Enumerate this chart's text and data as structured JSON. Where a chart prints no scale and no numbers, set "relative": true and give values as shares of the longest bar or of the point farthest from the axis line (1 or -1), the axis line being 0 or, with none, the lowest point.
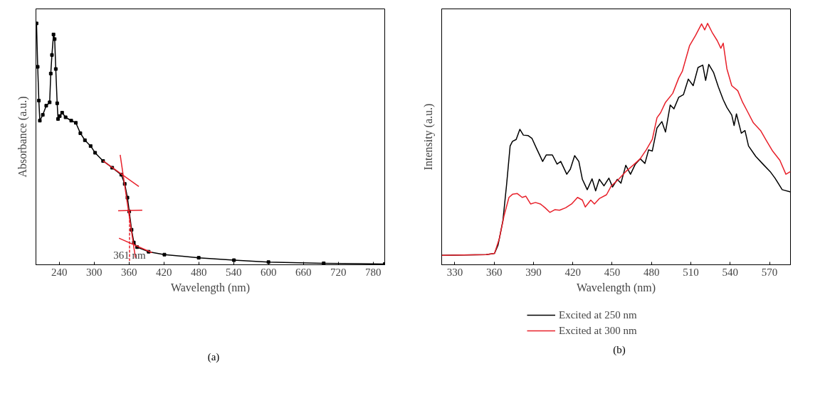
{
  "chart_data": [
    {
      "type": "line",
      "relative": true,
      "xlabel": "Wavelength (nm)",
      "ylabel": "Absorbance (a.u.)",
      "xlim": [
        200,
        800
      ],
      "xticks": [
        240,
        300,
        360,
        420,
        480,
        540,
        600,
        660,
        720,
        780
      ],
      "grid": false,
      "legend": false,
      "marker": "square",
      "line_style": "solid",
      "annotations": [
        "(a)",
        {
          "text": "361 nm",
          "x": 361,
          "y": 0.04
        }
      ],
      "series": [
        {
          "color": "#000000",
          "x": [
            201,
            203,
            205,
            206.7,
            211.8,
            217.7,
            223.6,
            225.5,
            227.5,
            230.2,
            232.2,
            234.1,
            236.5,
            238,
            241,
            245,
            251,
            260.7,
            268.6,
            276.4,
            284.2,
            294,
            301.8,
            315.5,
            331.2,
            346.8,
            352.7,
            357.4,
            360.5,
            364.5,
            368.4,
            374,
            393.8,
            421,
            480,
            540.6,
            600,
            695,
            800
          ],
          "values": [
            1.0,
            0.82,
            0.68,
            0.597,
            0.621,
            0.659,
            0.673,
            0.792,
            0.869,
            0.954,
            0.935,
            0.811,
            0.669,
            0.604,
            0.616,
            0.63,
            0.611,
            0.597,
            0.588,
            0.545,
            0.516,
            0.492,
            0.464,
            0.43,
            0.402,
            0.373,
            0.335,
            0.278,
            0.221,
            0.145,
            0.092,
            0.073,
            0.054,
            0.042,
            0.029,
            0.019,
            0.011,
            0.006,
            0.003
          ]
        },
        {
          "color": "#e8202a",
          "marker": "none",
          "x": [
            315.5,
            377
          ],
          "values": [
            0.43,
            0.324
          ]
        },
        {
          "color": "#e8202a",
          "marker": "none",
          "x": [
            344.9,
            371.1
          ],
          "values": [
            0.455,
            0.029
          ]
        },
        {
          "color": "#e8202a",
          "marker": "none",
          "x": [
            341.4,
            382.9
          ],
          "values": [
            0.224,
            0.226
          ]
        },
        {
          "color": "#e8202a",
          "marker": "none",
          "x": [
            342.9,
            399.7
          ],
          "values": [
            0.11,
            0.05
          ]
        },
        {
          "color": "#e8202a",
          "marker": "none",
          "line_style": "dashed",
          "x": [
            361,
            361
          ],
          "values": [
            0.221,
            0.016
          ]
        }
      ]
    },
    {
      "type": "line",
      "relative": true,
      "xlabel": "Wavelength (nm)",
      "ylabel": "Intensity (a.u.)",
      "xlim": [
        320,
        586
      ],
      "xticks": [
        330,
        360,
        390,
        420,
        450,
        480,
        510,
        540,
        570
      ],
      "grid": false,
      "legend": "bottom",
      "marker": "none",
      "line_style": "solid",
      "annotations": [
        "(b)"
      ],
      "series": [
        {
          "name": "Excited at 250 nm",
          "color": "#000000",
          "x": [
            320,
            353.9,
            360.3,
            363,
            366.7,
            369.5,
            372.2,
            374,
            376.8,
            379.6,
            382.3,
            386,
            388.8,
            392.4,
            397,
            399.8,
            404.4,
            408,
            410.8,
            415.4,
            418.1,
            421.4,
            424.6,
            427.3,
            431,
            434.7,
            437.4,
            440.2,
            443.8,
            447.5,
            450.3,
            453.9,
            456.7,
            460.4,
            464,
            467.7,
            471.4,
            475,
            477.8,
            480.6,
            484.2,
            487.9,
            490.7,
            494.3,
            497.1,
            500.8,
            504.4,
            508.1,
            511.8,
            515.5,
            519.1,
            521.3,
            523.7,
            527.4,
            531,
            534.7,
            537.5,
            541.2,
            543,
            544.8,
            548.5,
            551.3,
            554,
            559.5,
            565,
            570.5,
            574.2,
            579.7,
            586
          ],
          "values": [
            0.039,
            0.042,
            0.047,
            0.082,
            0.183,
            0.332,
            0.492,
            0.511,
            0.519,
            0.561,
            0.537,
            0.535,
            0.524,
            0.481,
            0.428,
            0.455,
            0.455,
            0.417,
            0.428,
            0.375,
            0.396,
            0.452,
            0.428,
            0.354,
            0.311,
            0.356,
            0.306,
            0.354,
            0.327,
            0.359,
            0.322,
            0.354,
            0.338,
            0.412,
            0.375,
            0.417,
            0.439,
            0.42,
            0.476,
            0.471,
            0.567,
            0.593,
            0.55,
            0.662,
            0.646,
            0.694,
            0.705,
            0.769,
            0.742,
            0.817,
            0.827,
            0.764,
            0.83,
            0.796,
            0.737,
            0.684,
            0.652,
            0.62,
            0.577,
            0.625,
            0.545,
            0.556,
            0.492,
            0.449,
            0.417,
            0.386,
            0.359,
            0.311,
            0.302
          ]
        },
        {
          "name": "Excited at 300 nm",
          "color": "#e8202a",
          "x": [
            320,
            353.9,
            360.3,
            364,
            367.6,
            371.3,
            374,
            377.7,
            381.4,
            384.2,
            387.8,
            391.5,
            395.2,
            398.9,
            402.5,
            406.2,
            409.9,
            414.5,
            419.1,
            423.6,
            427.3,
            429.5,
            433.7,
            436.5,
            440.2,
            445.7,
            449.4,
            454.9,
            460.4,
            465.9,
            471.4,
            476,
            480.6,
            484.2,
            487,
            490.7,
            496.2,
            500.8,
            503.5,
            509,
            513.6,
            518.2,
            520.6,
            522.8,
            526.5,
            530.1,
            532.9,
            534.7,
            537.5,
            541.2,
            545.8,
            549.5,
            553.1,
            557.7,
            563.2,
            567.8,
            572.4,
            577.9,
            582.5,
            586
          ],
          "values": [
            0.039,
            0.042,
            0.047,
            0.109,
            0.204,
            0.279,
            0.292,
            0.295,
            0.279,
            0.284,
            0.252,
            0.258,
            0.252,
            0.236,
            0.217,
            0.228,
            0.226,
            0.236,
            0.252,
            0.279,
            0.268,
            0.239,
            0.268,
            0.252,
            0.274,
            0.29,
            0.327,
            0.354,
            0.386,
            0.412,
            0.439,
            0.476,
            0.519,
            0.609,
            0.63,
            0.673,
            0.71,
            0.774,
            0.801,
            0.907,
            0.95,
            0.998,
            0.973,
            1.0,
            0.96,
            0.929,
            0.897,
            0.918,
            0.812,
            0.742,
            0.721,
            0.673,
            0.636,
            0.588,
            0.556,
            0.513,
            0.471,
            0.433,
            0.375,
            0.386
          ]
        }
      ]
    }
  ]
}
